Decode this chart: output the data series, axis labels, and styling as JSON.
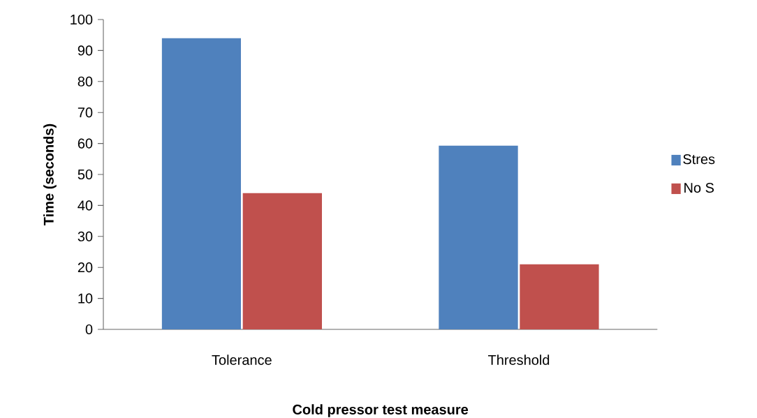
{
  "chart_data": {
    "type": "bar",
    "xlabel": "Cold pressor test measure",
    "ylabel": "Time (seconds)",
    "categories": [
      "Tolerance",
      "Threshold"
    ],
    "series": [
      {
        "name": "Stres",
        "color": "#4f81bd",
        "values": [
          94,
          59.3
        ]
      },
      {
        "name": "No S",
        "color": "#c0504d",
        "values": [
          44,
          21
        ]
      }
    ],
    "ylim": [
      0,
      100
    ],
    "yticks": [
      0,
      10,
      20,
      30,
      40,
      50,
      60,
      70,
      80,
      90,
      100
    ],
    "grid": false,
    "legend": "right"
  }
}
